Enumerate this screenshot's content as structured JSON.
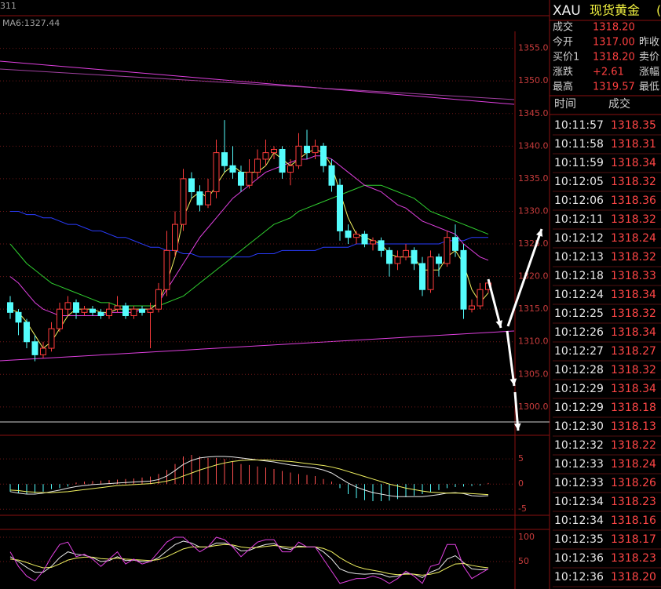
{
  "header_partial": "311",
  "ma_label": "MA6:1327.44",
  "chart_data": [
    {
      "type": "candlestick",
      "up_color": "#ff3c3c",
      "down_color": "#54fcfc",
      "ylim": [
        1297.7,
        1357.6
      ],
      "grid": true,
      "yticks": [
        {
          "value": 1355,
          "label": "1355.0"
        },
        {
          "value": 1350,
          "label": "1350.0"
        },
        {
          "value": 1345,
          "label": "1345.0"
        },
        {
          "value": 1340,
          "label": "1340.0"
        },
        {
          "value": 1335,
          "label": "1335.0"
        },
        {
          "value": 1330,
          "label": "1330.0"
        },
        {
          "value": 1325,
          "label": "1325.0"
        },
        {
          "value": 1320,
          "label": "1320.0"
        },
        {
          "value": 1315,
          "label": "1315.0"
        },
        {
          "value": 1310,
          "label": "1310.0"
        },
        {
          "value": 1305,
          "label": "1305.0"
        },
        {
          "value": 1300,
          "label": "1300.0"
        }
      ],
      "candles": [
        [
          1316,
          1317,
          1313.5,
          1314.5
        ],
        [
          1314.5,
          1315,
          1311,
          1313
        ],
        [
          1313,
          1313.5,
          1309,
          1310
        ],
        [
          1310,
          1311,
          1307,
          1308
        ],
        [
          1308,
          1310,
          1307.5,
          1309
        ],
        [
          1309,
          1313,
          1308.5,
          1312
        ],
        [
          1312,
          1316,
          1311.5,
          1315
        ],
        [
          1315,
          1317,
          1314,
          1316
        ],
        [
          1316,
          1316.5,
          1313.5,
          1314.5
        ],
        [
          1314.5,
          1315.5,
          1314,
          1315
        ],
        [
          1315,
          1315.5,
          1314,
          1314.5
        ],
        [
          1314.5,
          1315,
          1313.5,
          1314
        ],
        [
          1314,
          1316,
          1313.5,
          1315
        ],
        [
          1315,
          1317,
          1314.5,
          1315.5
        ],
        [
          1315.5,
          1316,
          1313.5,
          1314
        ],
        [
          1314,
          1315.5,
          1313.5,
          1315
        ],
        [
          1315,
          1315.5,
          1314,
          1314.5
        ],
        [
          1314.5,
          1316,
          1309,
          1315
        ],
        [
          1315,
          1319,
          1314.5,
          1318
        ],
        [
          1318,
          1327,
          1317,
          1324
        ],
        [
          1324,
          1330,
          1323,
          1328
        ],
        [
          1328,
          1336.5,
          1327,
          1335
        ],
        [
          1335,
          1336,
          1332,
          1333
        ],
        [
          1333,
          1334,
          1330,
          1331
        ],
        [
          1331,
          1335,
          1330.5,
          1333
        ],
        [
          1333,
          1341,
          1332,
          1339
        ],
        [
          1339,
          1344,
          1336,
          1337
        ],
        [
          1337,
          1340,
          1335,
          1336
        ],
        [
          1336,
          1337,
          1333,
          1334
        ],
        [
          1334,
          1338,
          1333.5,
          1336
        ],
        [
          1336,
          1339.5,
          1335,
          1338
        ],
        [
          1338,
          1341,
          1337,
          1339
        ],
        [
          1339,
          1340,
          1338,
          1339.5
        ],
        [
          1339.5,
          1340,
          1335,
          1336
        ],
        [
          1336,
          1338,
          1334,
          1337
        ],
        [
          1337,
          1342,
          1336.5,
          1340
        ],
        [
          1340,
          1342.5,
          1338,
          1339
        ],
        [
          1339,
          1341,
          1338,
          1340
        ],
        [
          1340,
          1340.5,
          1336,
          1337
        ],
        [
          1337,
          1338,
          1333,
          1334
        ],
        [
          1334,
          1335,
          1325.5,
          1327
        ],
        [
          1327,
          1328,
          1325,
          1326
        ],
        [
          1326,
          1327,
          1325,
          1326.5
        ],
        [
          1326.5,
          1327,
          1324.5,
          1325
        ],
        [
          1325,
          1326,
          1324,
          1325.5
        ],
        [
          1325.5,
          1326,
          1323,
          1324
        ],
        [
          1324,
          1324.5,
          1320,
          1322
        ],
        [
          1322,
          1324,
          1321,
          1323
        ],
        [
          1323,
          1325,
          1322.5,
          1324
        ],
        [
          1324,
          1324.5,
          1321,
          1322
        ],
        [
          1322,
          1323,
          1317,
          1318
        ],
        [
          1318,
          1324,
          1317.5,
          1323
        ],
        [
          1323,
          1323.5,
          1320,
          1322
        ],
        [
          1322,
          1327,
          1321.5,
          1326
        ],
        [
          1326,
          1328,
          1323,
          1324
        ],
        [
          1324,
          1325,
          1313.5,
          1315
        ],
        [
          1315,
          1316.5,
          1314.5,
          1315.5
        ],
        [
          1315.5,
          1319,
          1315,
          1318
        ],
        [
          1318,
          1319.5,
          1317.5,
          1319
        ]
      ],
      "lines": [
        {
          "color": "#2a3cff",
          "values": [
            1330,
            1330,
            1329.5,
            1329.5,
            1329,
            1329,
            1328.5,
            1328,
            1328,
            1327.5,
            1327,
            1327,
            1326.5,
            1326,
            1326,
            1325.5,
            1325,
            1324.5,
            1324.5,
            1324,
            1324,
            1323.5,
            1323.5,
            1323,
            1323,
            1323,
            1323,
            1323,
            1323,
            1323,
            1323.5,
            1323.5,
            1323.5,
            1324,
            1324,
            1324,
            1324,
            1324,
            1324.5,
            1324.5,
            1324.5,
            1324.5,
            1325,
            1325,
            1325,
            1325,
            1325,
            1325,
            1325,
            1325,
            1325,
            1325,
            1325,
            1325.5,
            1325.5,
            1325.5,
            1326,
            1326,
            1326
          ]
        },
        {
          "color": "#30d030",
          "values": [
            1325,
            1323.5,
            1322,
            1321,
            1320,
            1319,
            1318.5,
            1318,
            1317.5,
            1317,
            1316.5,
            1316,
            1316,
            1315.5,
            1315.5,
            1315.5,
            1315.5,
            1315.5,
            1315.5,
            1316,
            1316.5,
            1317,
            1318,
            1319,
            1320,
            1321,
            1322,
            1323,
            1324,
            1325,
            1326,
            1327,
            1328,
            1328.5,
            1329,
            1330,
            1330.5,
            1331,
            1331.5,
            1332,
            1332.5,
            1333,
            1333.5,
            1334,
            1334,
            1334,
            1333.5,
            1333,
            1332.5,
            1332,
            1331,
            1330,
            1329.5,
            1329,
            1328.5,
            1328,
            1327.5,
            1327,
            1326.5
          ]
        },
        {
          "color": "#e040e0",
          "values": [
            1320,
            1319,
            1317.5,
            1316,
            1315,
            1314.5,
            1314,
            1314,
            1314,
            1314,
            1314,
            1314,
            1314.5,
            1314.5,
            1314.5,
            1314.5,
            1315,
            1315,
            1316,
            1318,
            1320,
            1322,
            1324,
            1326,
            1327.5,
            1329,
            1330.5,
            1332,
            1333,
            1334,
            1335,
            1336,
            1336.5,
            1337,
            1337.5,
            1338,
            1338,
            1338.5,
            1338.5,
            1338,
            1337,
            1336,
            1335,
            1334,
            1333.5,
            1333,
            1332,
            1331,
            1330.5,
            1329.5,
            1328.5,
            1328,
            1327.5,
            1327,
            1326.5,
            1325,
            1324,
            1323,
            1322.5
          ]
        },
        {
          "color": "#f0f060",
          "values": [
            1315,
            1314.5,
            1313,
            1311,
            1309,
            1310,
            1312,
            1314,
            1315,
            1315,
            1315,
            1314.5,
            1314.5,
            1315,
            1315,
            1315,
            1315,
            1315,
            1316,
            1319,
            1323,
            1329,
            1332,
            1333,
            1332,
            1334,
            1336,
            1337,
            1336,
            1336,
            1336,
            1337,
            1339,
            1338,
            1337,
            1338,
            1339,
            1339.5,
            1339,
            1337,
            1333,
            1329,
            1326.5,
            1326,
            1325.5,
            1325,
            1323.5,
            1323,
            1323,
            1323,
            1321,
            1321,
            1321,
            1323,
            1324,
            1322,
            1318,
            1316,
            1317.5
          ]
        }
      ]
    },
    {
      "type": "macd",
      "up_color": "#ff5050",
      "down_color": "#54fcfc",
      "ylim": [
        -5.9,
        9.4
      ],
      "grid": true,
      "yticks": [
        5,
        0,
        -5
      ],
      "bars": [
        -1.5,
        -1.8,
        -2,
        -1.8,
        -1.5,
        -1,
        -0.8,
        -0.5,
        0.3,
        0.5,
        0.6,
        0.7,
        0.8,
        0.9,
        1,
        1.1,
        1.3,
        1.5,
        2,
        2.8,
        4,
        5.5,
        5.8,
        5.5,
        5.2,
        5.2,
        5,
        4.5,
        4,
        3.8,
        3.5,
        3.3,
        3,
        2.6,
        2.3,
        2,
        1.8,
        1.6,
        1,
        0.5,
        -0.8,
        -2,
        -2.8,
        -3.2,
        -3.4,
        -3.4,
        -3.3,
        -3,
        -2.6,
        -2.3,
        -2,
        -1.6,
        -1.2,
        -0.8,
        -0.6,
        -0.5,
        -0.4,
        -0.3,
        0.2
      ],
      "lines": [
        {
          "color": "#e8e8e8",
          "values": [
            -1.5,
            -1.8,
            -2,
            -2,
            -1.8,
            -1.5,
            -1.2,
            -0.8,
            -0.5,
            -0.3,
            -0.1,
            0,
            0.1,
            0.2,
            0.3,
            0.4,
            0.5,
            0.6,
            0.9,
            1.6,
            2.7,
            3.9,
            4.7,
            5.2,
            5.4,
            5.5,
            5.5,
            5.4,
            5.2,
            5,
            4.8,
            4.6,
            4.4,
            4.1,
            3.8,
            3.6,
            3.4,
            3.2,
            2.8,
            2.2,
            1.2,
            0.2,
            -0.6,
            -1.2,
            -1.7,
            -2,
            -2.3,
            -2.5,
            -2.5,
            -2.5,
            -2.5,
            -2.3,
            -2.1,
            -1.8,
            -1.7,
            -1.9,
            -2.3,
            -2.4,
            -2.3
          ]
        },
        {
          "color": "#f0f060",
          "values": [
            -1.2,
            -1.3,
            -1.5,
            -1.6,
            -1.7,
            -1.7,
            -1.6,
            -1.5,
            -1.3,
            -1.1,
            -0.9,
            -0.7,
            -0.5,
            -0.3,
            -0.2,
            -0.1,
            0,
            0.1,
            0.3,
            0.6,
            1,
            1.6,
            2.2,
            2.8,
            3.3,
            3.8,
            4.2,
            4.5,
            4.7,
            4.8,
            4.8,
            4.8,
            4.7,
            4.6,
            4.5,
            4.3,
            4.1,
            3.9,
            3.7,
            3.4,
            3,
            2.5,
            2,
            1.5,
            1,
            0.5,
            0,
            -0.4,
            -0.8,
            -1.1,
            -1.4,
            -1.6,
            -1.7,
            -1.8,
            -1.8,
            -1.8,
            -1.9,
            -2,
            -2.1
          ]
        }
      ]
    },
    {
      "type": "kdj",
      "ylim": [
        -6.5,
        112.9
      ],
      "grid": true,
      "yticks": [
        100,
        50
      ],
      "lines": [
        {
          "color": "#e8e8e8",
          "values": [
            60,
            50,
            38,
            28,
            28,
            40,
            58,
            70,
            65,
            63,
            58,
            50,
            52,
            60,
            52,
            53,
            50,
            50,
            58,
            72,
            85,
            92,
            88,
            80,
            80,
            88,
            88,
            82,
            72,
            73,
            80,
            85,
            87,
            78,
            75,
            82,
            80,
            80,
            70,
            55,
            35,
            28,
            25,
            24,
            25,
            24,
            18,
            20,
            26,
            24,
            17,
            28,
            35,
            55,
            62,
            48,
            35,
            33,
            34
          ]
        },
        {
          "color": "#f0f060",
          "values": [
            55,
            53,
            48,
            42,
            37,
            38,
            45,
            53,
            57,
            59,
            59,
            56,
            55,
            57,
            55,
            54,
            53,
            52,
            54,
            60,
            68,
            76,
            80,
            80,
            80,
            83,
            85,
            84,
            80,
            78,
            79,
            81,
            83,
            81,
            79,
            80,
            80,
            80,
            77,
            70,
            58,
            48,
            40,
            35,
            32,
            29,
            25,
            23,
            24,
            24,
            22,
            24,
            28,
            37,
            45,
            46,
            42,
            39,
            37
          ]
        },
        {
          "color": "#e040e0",
          "values": [
            70,
            40,
            20,
            10,
            30,
            60,
            85,
            90,
            60,
            65,
            55,
            40,
            55,
            70,
            45,
            55,
            45,
            50,
            70,
            90,
            100,
            100,
            85,
            70,
            80,
            100,
            95,
            80,
            60,
            75,
            90,
            95,
            95,
            70,
            70,
            90,
            80,
            80,
            55,
            30,
            5,
            10,
            15,
            15,
            20,
            15,
            5,
            15,
            30,
            20,
            5,
            40,
            45,
            85,
            85,
            40,
            15,
            25,
            35
          ]
        }
      ]
    }
  ],
  "quote": {
    "symbol": "XAU",
    "name": "现货黄金",
    "name_extra": "(",
    "rows": [
      {
        "label": "成交",
        "value": "1318.20"
      },
      {
        "label": "今开",
        "value": "1317.00",
        "label2": "昨收"
      },
      {
        "label": "买价1",
        "value": "1318.20",
        "label2": "卖价"
      },
      {
        "label": "涨跌",
        "value": "+2.61",
        "label2": "涨幅"
      },
      {
        "label": "最高",
        "value": "1319.57",
        "label2": "最低"
      }
    ]
  },
  "ticks_table": {
    "headers": [
      "时间",
      "成交"
    ],
    "rows": [
      [
        "10:11:57",
        "1318.35"
      ],
      [
        "10:11:58",
        "1318.31"
      ],
      [
        "10:11:59",
        "1318.34"
      ],
      [
        "10:12:05",
        "1318.32"
      ],
      [
        "10:12:06",
        "1318.36"
      ],
      [
        "10:12:11",
        "1318.32"
      ],
      [
        "10:12:12",
        "1318.24"
      ],
      [
        "10:12:13",
        "1318.32"
      ],
      [
        "10:12:18",
        "1318.33"
      ],
      [
        "10:12:24",
        "1318.34"
      ],
      [
        "10:12:25",
        "1318.32"
      ],
      [
        "10:12:26",
        "1318.34"
      ],
      [
        "10:12:27",
        "1318.27"
      ],
      [
        "10:12:28",
        "1318.32"
      ],
      [
        "10:12:29",
        "1318.34"
      ],
      [
        "10:12:29",
        "1318.18"
      ],
      [
        "10:12:30",
        "1318.13"
      ],
      [
        "10:12:32",
        "1318.22"
      ],
      [
        "10:12:33",
        "1318.24"
      ],
      [
        "10:12:33",
        "1318.26"
      ],
      [
        "10:12:34",
        "1318.23"
      ],
      [
        "10:12:34",
        "1318.16"
      ],
      [
        "10:12:35",
        "1318.17"
      ],
      [
        "10:12:36",
        "1318.23"
      ],
      [
        "10:12:36",
        "1318.20"
      ]
    ]
  }
}
